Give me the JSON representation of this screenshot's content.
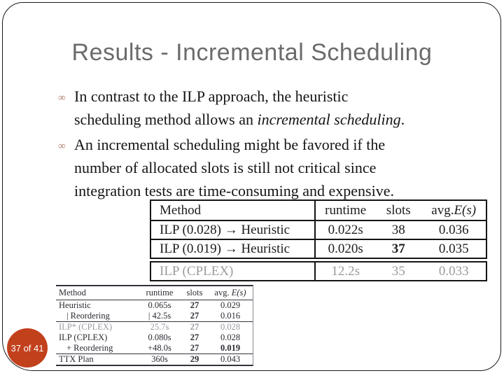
{
  "slide": {
    "title": "Results - Incremental Scheduling",
    "title_color": "#6b6b6b",
    "page_label": "37 of 41",
    "accent_color": "#c2411d",
    "bullet_glyph": "∞",
    "bullet_color": "#b1846c",
    "bullets": [
      {
        "lines": [
          [
            {
              "text": "In contrast to the ILP approach, the heuristic"
            }
          ],
          [
            {
              "text": "scheduling method allows an "
            },
            {
              "text": "incremental scheduling",
              "italic": true
            },
            {
              "text": "."
            }
          ]
        ]
      },
      {
        "lines": [
          [
            {
              "text": "An incremental scheduling might be favored if the"
            }
          ],
          [
            {
              "text": "number of allocated slots is still not critical since"
            }
          ],
          [
            {
              "text": "integration tests are time-consuming and expensive."
            }
          ]
        ]
      }
    ]
  },
  "upper_table": {
    "headers": {
      "method": "Method",
      "runtime": "runtime",
      "slots": "slots",
      "avg_prefix": "avg. ",
      "avg_math": "E(s)"
    },
    "rows": [
      {
        "method": "ILP (0.028) → Heuristic",
        "runtime": "0.022s",
        "slots": "38",
        "avg": "0.036"
      },
      {
        "method": "ILP (0.019) → Heuristic",
        "runtime": "0.020s",
        "slots": "37",
        "avg": "0.035",
        "slots_bold": true
      }
    ],
    "detached_row": {
      "method": "ILP (CPLEX)",
      "runtime": "12.2s",
      "slots": "35",
      "avg": "0.033",
      "gray": true
    }
  },
  "lower_table": {
    "headers": {
      "method": "Method",
      "runtime": "runtime",
      "slots": "slots",
      "avg_prefix": "avg. ",
      "avg_math": "E(s)"
    },
    "groups": [
      [
        {
          "method": "Heuristic",
          "runtime": "0.065s",
          "slots": "27",
          "avg": "0.029"
        },
        {
          "method": "| Reordering",
          "runtime": "| 42.5s",
          "slots": "27",
          "avg": "0.016",
          "indent": true
        }
      ],
      [
        {
          "method": "ILP* (CPLEX)",
          "runtime": "25.7s",
          "slots": "27",
          "avg": "0.028",
          "gray": true
        },
        {
          "method": "ILP (CPLEX)",
          "runtime": "0.080s",
          "slots": "27",
          "avg": "0.028"
        },
        {
          "method": "+ Reordering",
          "runtime": "+48.0s",
          "slots": "27",
          "avg": "0.019",
          "indent": true,
          "avg_bold": true
        }
      ],
      [
        {
          "method": "TTX Plan",
          "runtime": "360s",
          "slots": "29",
          "avg": "0.043"
        }
      ]
    ]
  }
}
